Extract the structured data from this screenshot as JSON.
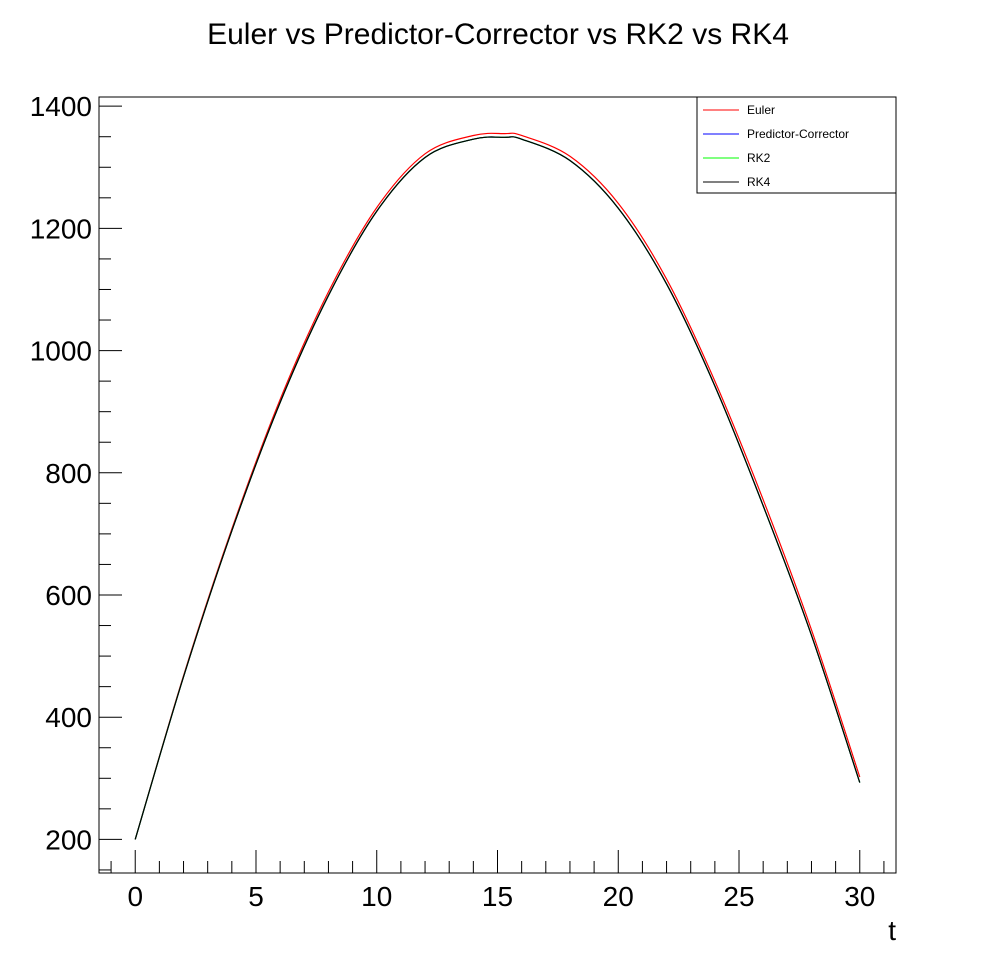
{
  "chart_data": {
    "type": "line",
    "title": "Euler vs Predictor-Corrector vs RK2 vs RK4",
    "xlabel": "t",
    "ylabel": "",
    "xlim": [
      -1.5,
      31.5
    ],
    "ylim": [
      145,
      1415
    ],
    "x_ticks": [
      0,
      5,
      10,
      15,
      20,
      25,
      30
    ],
    "y_ticks": [
      200,
      400,
      600,
      800,
      1000,
      1200,
      1400
    ],
    "grid": false,
    "legend_position": "top-right",
    "x": [
      0,
      2,
      4,
      6,
      8,
      10,
      12,
      14,
      15.3,
      16,
      18,
      20,
      22,
      24,
      26,
      28,
      30
    ],
    "series": [
      {
        "name": "Euler",
        "color": "#ff0000",
        "values": [
          200,
          468,
          708,
          920,
          1096,
          1234,
          1322,
          1352,
          1355,
          1352,
          1318,
          1241,
          1117,
          950,
          756,
          543,
          302
        ]
      },
      {
        "name": "Predictor-Corrector",
        "color": "#0000ff",
        "values": [
          200,
          466,
          705,
          915,
          1090,
          1228,
          1316,
          1346,
          1349,
          1346,
          1311,
          1233,
          1109,
          942,
          746,
          534,
          293
        ]
      },
      {
        "name": "RK2",
        "color": "#00ff00",
        "values": [
          200,
          466,
          705,
          915,
          1090,
          1228,
          1316,
          1346,
          1349,
          1346,
          1311,
          1233,
          1109,
          942,
          746,
          534,
          293
        ]
      },
      {
        "name": "RK4",
        "color": "#000000",
        "values": [
          200,
          466,
          705,
          915,
          1090,
          1228,
          1316,
          1346,
          1349,
          1346,
          1311,
          1233,
          1109,
          942,
          746,
          534,
          293
        ]
      }
    ]
  }
}
